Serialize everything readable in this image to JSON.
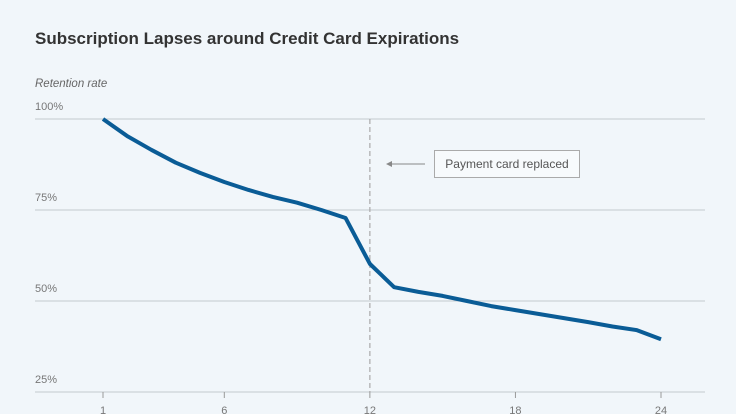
{
  "chart_data": {
    "type": "line",
    "title": "Subscription Lapses around Credit Card Expirations",
    "ylabel": "Retention rate",
    "xlabel": "",
    "ylim": [
      25,
      100
    ],
    "xlim": [
      1,
      24
    ],
    "yticks": [
      100,
      75,
      50,
      25
    ],
    "ytick_labels": [
      "100%",
      "75%",
      "50%",
      "25%"
    ],
    "xticks": [
      1,
      6,
      12,
      18,
      24
    ],
    "xtick_labels": [
      "1",
      "6",
      "12",
      "18",
      "24"
    ],
    "grid": true,
    "series": [
      {
        "color": "#0a5c96",
        "x": [
          1,
          2,
          3,
          4,
          5,
          6,
          7,
          8,
          9,
          10,
          11,
          12,
          13,
          14,
          15,
          16,
          17,
          18,
          19,
          20,
          21,
          22,
          23,
          24
        ],
        "y": [
          100,
          95.3,
          91.5,
          88,
          85.2,
          82.7,
          80.5,
          78.6,
          77,
          75,
          72.8,
          60.2,
          53.8,
          52.5,
          51.4,
          50,
          48.6,
          47.5,
          46.4,
          45.3,
          44.2,
          43,
          42,
          39.5
        ]
      }
    ],
    "annotations": [
      {
        "x": 12,
        "text": "Payment card replaced",
        "style": "dashed-vertical-line"
      }
    ]
  }
}
